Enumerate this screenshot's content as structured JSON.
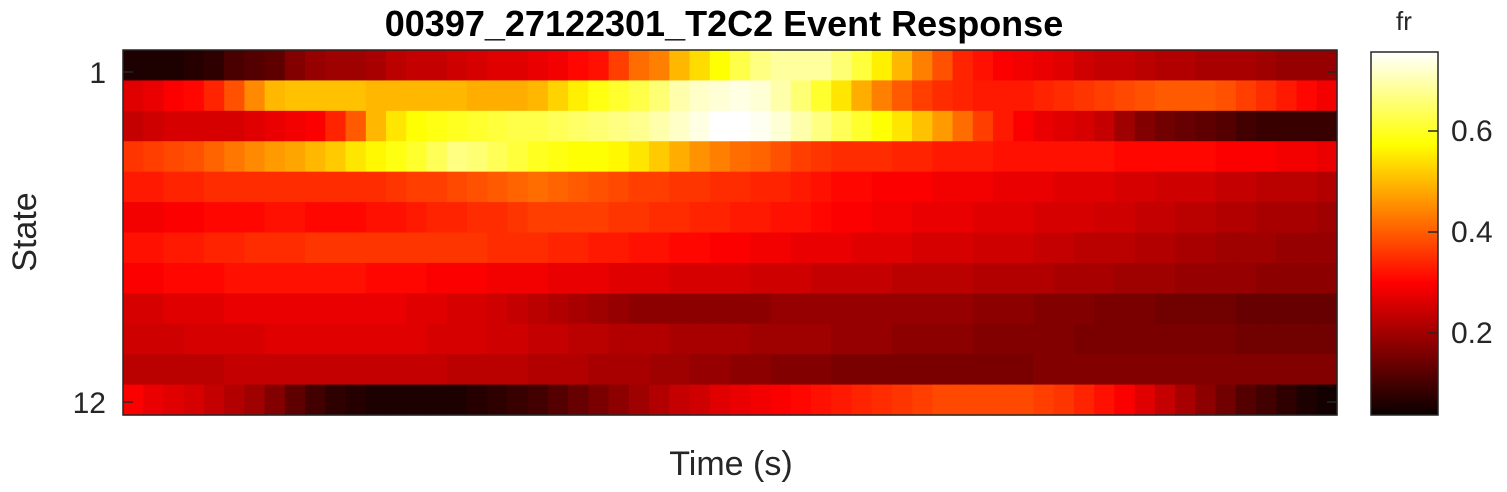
{
  "chart_data": {
    "type": "heatmap",
    "title": "00397_27122301_T2C2 Event Response",
    "xlabel": "Time (s)",
    "ylabel": "State",
    "y_tick_labels": [
      "1",
      "12"
    ],
    "colorbar": {
      "title": "fr",
      "colormap": "hot",
      "range": [
        0.04,
        0.76
      ],
      "ticks": [
        0.2,
        0.4,
        0.6
      ],
      "tick_labels": [
        "0.2",
        "0.4",
        "0.6"
      ]
    },
    "rows": 12,
    "columns": 60,
    "values": [
      [
        0.06,
        0.06,
        0.06,
        0.07,
        0.08,
        0.11,
        0.12,
        0.13,
        0.17,
        0.19,
        0.2,
        0.2,
        0.21,
        0.23,
        0.24,
        0.24,
        0.25,
        0.26,
        0.27,
        0.27,
        0.28,
        0.29,
        0.31,
        0.32,
        0.37,
        0.42,
        0.44,
        0.5,
        0.54,
        0.58,
        0.63,
        0.67,
        0.69,
        0.69,
        0.69,
        0.66,
        0.62,
        0.56,
        0.5,
        0.44,
        0.39,
        0.34,
        0.32,
        0.3,
        0.29,
        0.28,
        0.27,
        0.25,
        0.24,
        0.24,
        0.23,
        0.22,
        0.22,
        0.21,
        0.21,
        0.21,
        0.2,
        0.19,
        0.19,
        0.19
      ],
      [
        0.27,
        0.28,
        0.3,
        0.31,
        0.34,
        0.39,
        0.45,
        0.5,
        0.51,
        0.51,
        0.51,
        0.51,
        0.5,
        0.5,
        0.5,
        0.5,
        0.5,
        0.49,
        0.49,
        0.49,
        0.5,
        0.53,
        0.56,
        0.59,
        0.61,
        0.63,
        0.66,
        0.7,
        0.72,
        0.73,
        0.74,
        0.73,
        0.7,
        0.66,
        0.61,
        0.55,
        0.49,
        0.44,
        0.4,
        0.37,
        0.35,
        0.34,
        0.33,
        0.33,
        0.33,
        0.34,
        0.35,
        0.36,
        0.37,
        0.38,
        0.39,
        0.4,
        0.4,
        0.4,
        0.39,
        0.37,
        0.35,
        0.33,
        0.31,
        0.29
      ],
      [
        0.24,
        0.25,
        0.26,
        0.26,
        0.26,
        0.26,
        0.27,
        0.28,
        0.29,
        0.3,
        0.34,
        0.4,
        0.5,
        0.55,
        0.58,
        0.59,
        0.6,
        0.61,
        0.62,
        0.63,
        0.63,
        0.64,
        0.65,
        0.66,
        0.67,
        0.68,
        0.7,
        0.72,
        0.74,
        0.76,
        0.76,
        0.75,
        0.73,
        0.7,
        0.67,
        0.64,
        0.61,
        0.58,
        0.55,
        0.51,
        0.47,
        0.42,
        0.37,
        0.33,
        0.3,
        0.28,
        0.27,
        0.26,
        0.24,
        0.2,
        0.17,
        0.15,
        0.14,
        0.13,
        0.12,
        0.1,
        0.09,
        0.09,
        0.09,
        0.09
      ],
      [
        0.36,
        0.37,
        0.38,
        0.39,
        0.41,
        0.43,
        0.45,
        0.47,
        0.48,
        0.5,
        0.52,
        0.55,
        0.57,
        0.59,
        0.61,
        0.64,
        0.67,
        0.66,
        0.64,
        0.62,
        0.6,
        0.59,
        0.58,
        0.58,
        0.57,
        0.55,
        0.52,
        0.49,
        0.46,
        0.44,
        0.42,
        0.41,
        0.39,
        0.37,
        0.36,
        0.35,
        0.35,
        0.35,
        0.34,
        0.34,
        0.33,
        0.33,
        0.33,
        0.32,
        0.32,
        0.32,
        0.32,
        0.32,
        0.32,
        0.31,
        0.31,
        0.31,
        0.31,
        0.31,
        0.3,
        0.3,
        0.3,
        0.29,
        0.29,
        0.28
      ],
      [
        0.33,
        0.33,
        0.34,
        0.34,
        0.35,
        0.35,
        0.35,
        0.35,
        0.35,
        0.35,
        0.35,
        0.35,
        0.35,
        0.36,
        0.37,
        0.37,
        0.38,
        0.39,
        0.4,
        0.41,
        0.42,
        0.41,
        0.4,
        0.39,
        0.38,
        0.37,
        0.37,
        0.36,
        0.36,
        0.35,
        0.35,
        0.34,
        0.34,
        0.33,
        0.32,
        0.31,
        0.31,
        0.3,
        0.3,
        0.3,
        0.29,
        0.29,
        0.29,
        0.28,
        0.28,
        0.28,
        0.27,
        0.27,
        0.27,
        0.26,
        0.26,
        0.25,
        0.25,
        0.25,
        0.24,
        0.24,
        0.23,
        0.23,
        0.23,
        0.22
      ],
      [
        0.29,
        0.29,
        0.3,
        0.3,
        0.31,
        0.31,
        0.31,
        0.32,
        0.32,
        0.31,
        0.31,
        0.31,
        0.32,
        0.32,
        0.33,
        0.34,
        0.34,
        0.35,
        0.35,
        0.36,
        0.37,
        0.37,
        0.37,
        0.37,
        0.36,
        0.36,
        0.35,
        0.35,
        0.34,
        0.34,
        0.33,
        0.33,
        0.32,
        0.32,
        0.31,
        0.3,
        0.3,
        0.29,
        0.29,
        0.28,
        0.28,
        0.28,
        0.27,
        0.27,
        0.27,
        0.26,
        0.26,
        0.26,
        0.25,
        0.25,
        0.24,
        0.24,
        0.23,
        0.23,
        0.22,
        0.22,
        0.21,
        0.21,
        0.21,
        0.2
      ],
      [
        0.32,
        0.32,
        0.33,
        0.33,
        0.34,
        0.34,
        0.35,
        0.35,
        0.35,
        0.36,
        0.36,
        0.36,
        0.36,
        0.36,
        0.36,
        0.36,
        0.36,
        0.36,
        0.35,
        0.35,
        0.35,
        0.34,
        0.34,
        0.33,
        0.33,
        0.32,
        0.32,
        0.31,
        0.31,
        0.3,
        0.3,
        0.29,
        0.29,
        0.28,
        0.28,
        0.28,
        0.27,
        0.27,
        0.27,
        0.26,
        0.26,
        0.26,
        0.25,
        0.25,
        0.25,
        0.24,
        0.24,
        0.23,
        0.23,
        0.23,
        0.22,
        0.22,
        0.21,
        0.21,
        0.2,
        0.2,
        0.2,
        0.19,
        0.19,
        0.19
      ],
      [
        0.3,
        0.3,
        0.31,
        0.31,
        0.31,
        0.32,
        0.32,
        0.32,
        0.32,
        0.32,
        0.32,
        0.32,
        0.31,
        0.31,
        0.31,
        0.3,
        0.3,
        0.3,
        0.29,
        0.29,
        0.29,
        0.28,
        0.28,
        0.28,
        0.27,
        0.27,
        0.27,
        0.26,
        0.26,
        0.26,
        0.26,
        0.25,
        0.25,
        0.25,
        0.24,
        0.24,
        0.24,
        0.24,
        0.23,
        0.23,
        0.23,
        0.23,
        0.22,
        0.22,
        0.22,
        0.22,
        0.21,
        0.21,
        0.21,
        0.2,
        0.2,
        0.2,
        0.19,
        0.19,
        0.19,
        0.19,
        0.18,
        0.18,
        0.18,
        0.18
      ],
      [
        0.26,
        0.26,
        0.27,
        0.27,
        0.27,
        0.28,
        0.28,
        0.28,
        0.28,
        0.28,
        0.28,
        0.28,
        0.28,
        0.28,
        0.27,
        0.27,
        0.26,
        0.26,
        0.25,
        0.24,
        0.23,
        0.22,
        0.21,
        0.2,
        0.19,
        0.18,
        0.18,
        0.18,
        0.18,
        0.18,
        0.18,
        0.18,
        0.19,
        0.19,
        0.19,
        0.19,
        0.19,
        0.19,
        0.19,
        0.19,
        0.19,
        0.19,
        0.18,
        0.18,
        0.18,
        0.17,
        0.17,
        0.17,
        0.16,
        0.16,
        0.16,
        0.15,
        0.15,
        0.15,
        0.15,
        0.14,
        0.14,
        0.14,
        0.14,
        0.14
      ],
      [
        0.25,
        0.25,
        0.25,
        0.26,
        0.26,
        0.26,
        0.26,
        0.27,
        0.27,
        0.27,
        0.27,
        0.27,
        0.27,
        0.27,
        0.27,
        0.26,
        0.26,
        0.26,
        0.25,
        0.25,
        0.24,
        0.24,
        0.23,
        0.23,
        0.22,
        0.22,
        0.22,
        0.21,
        0.21,
        0.21,
        0.21,
        0.2,
        0.2,
        0.2,
        0.2,
        0.19,
        0.19,
        0.19,
        0.18,
        0.18,
        0.18,
        0.18,
        0.17,
        0.17,
        0.17,
        0.17,
        0.17,
        0.16,
        0.16,
        0.16,
        0.16,
        0.16,
        0.16,
        0.16,
        0.16,
        0.15,
        0.15,
        0.15,
        0.15,
        0.15
      ],
      [
        0.23,
        0.23,
        0.23,
        0.23,
        0.23,
        0.24,
        0.24,
        0.24,
        0.24,
        0.24,
        0.24,
        0.24,
        0.24,
        0.24,
        0.24,
        0.24,
        0.23,
        0.23,
        0.23,
        0.23,
        0.22,
        0.22,
        0.22,
        0.21,
        0.21,
        0.21,
        0.2,
        0.2,
        0.19,
        0.19,
        0.18,
        0.18,
        0.17,
        0.17,
        0.17,
        0.16,
        0.16,
        0.16,
        0.16,
        0.16,
        0.16,
        0.16,
        0.16,
        0.16,
        0.16,
        0.17,
        0.17,
        0.17,
        0.17,
        0.17,
        0.17,
        0.17,
        0.17,
        0.17,
        0.17,
        0.17,
        0.17,
        0.17,
        0.17,
        0.17
      ],
      [
        0.3,
        0.28,
        0.27,
        0.26,
        0.24,
        0.22,
        0.2,
        0.17,
        0.13,
        0.1,
        0.08,
        0.07,
        0.06,
        0.06,
        0.06,
        0.06,
        0.06,
        0.07,
        0.08,
        0.09,
        0.1,
        0.12,
        0.14,
        0.16,
        0.18,
        0.2,
        0.22,
        0.24,
        0.25,
        0.27,
        0.28,
        0.29,
        0.3,
        0.31,
        0.32,
        0.33,
        0.34,
        0.35,
        0.36,
        0.37,
        0.38,
        0.38,
        0.38,
        0.38,
        0.38,
        0.37,
        0.36,
        0.34,
        0.32,
        0.3,
        0.27,
        0.24,
        0.21,
        0.18,
        0.15,
        0.12,
        0.1,
        0.08,
        0.06,
        0.05
      ]
    ]
  }
}
